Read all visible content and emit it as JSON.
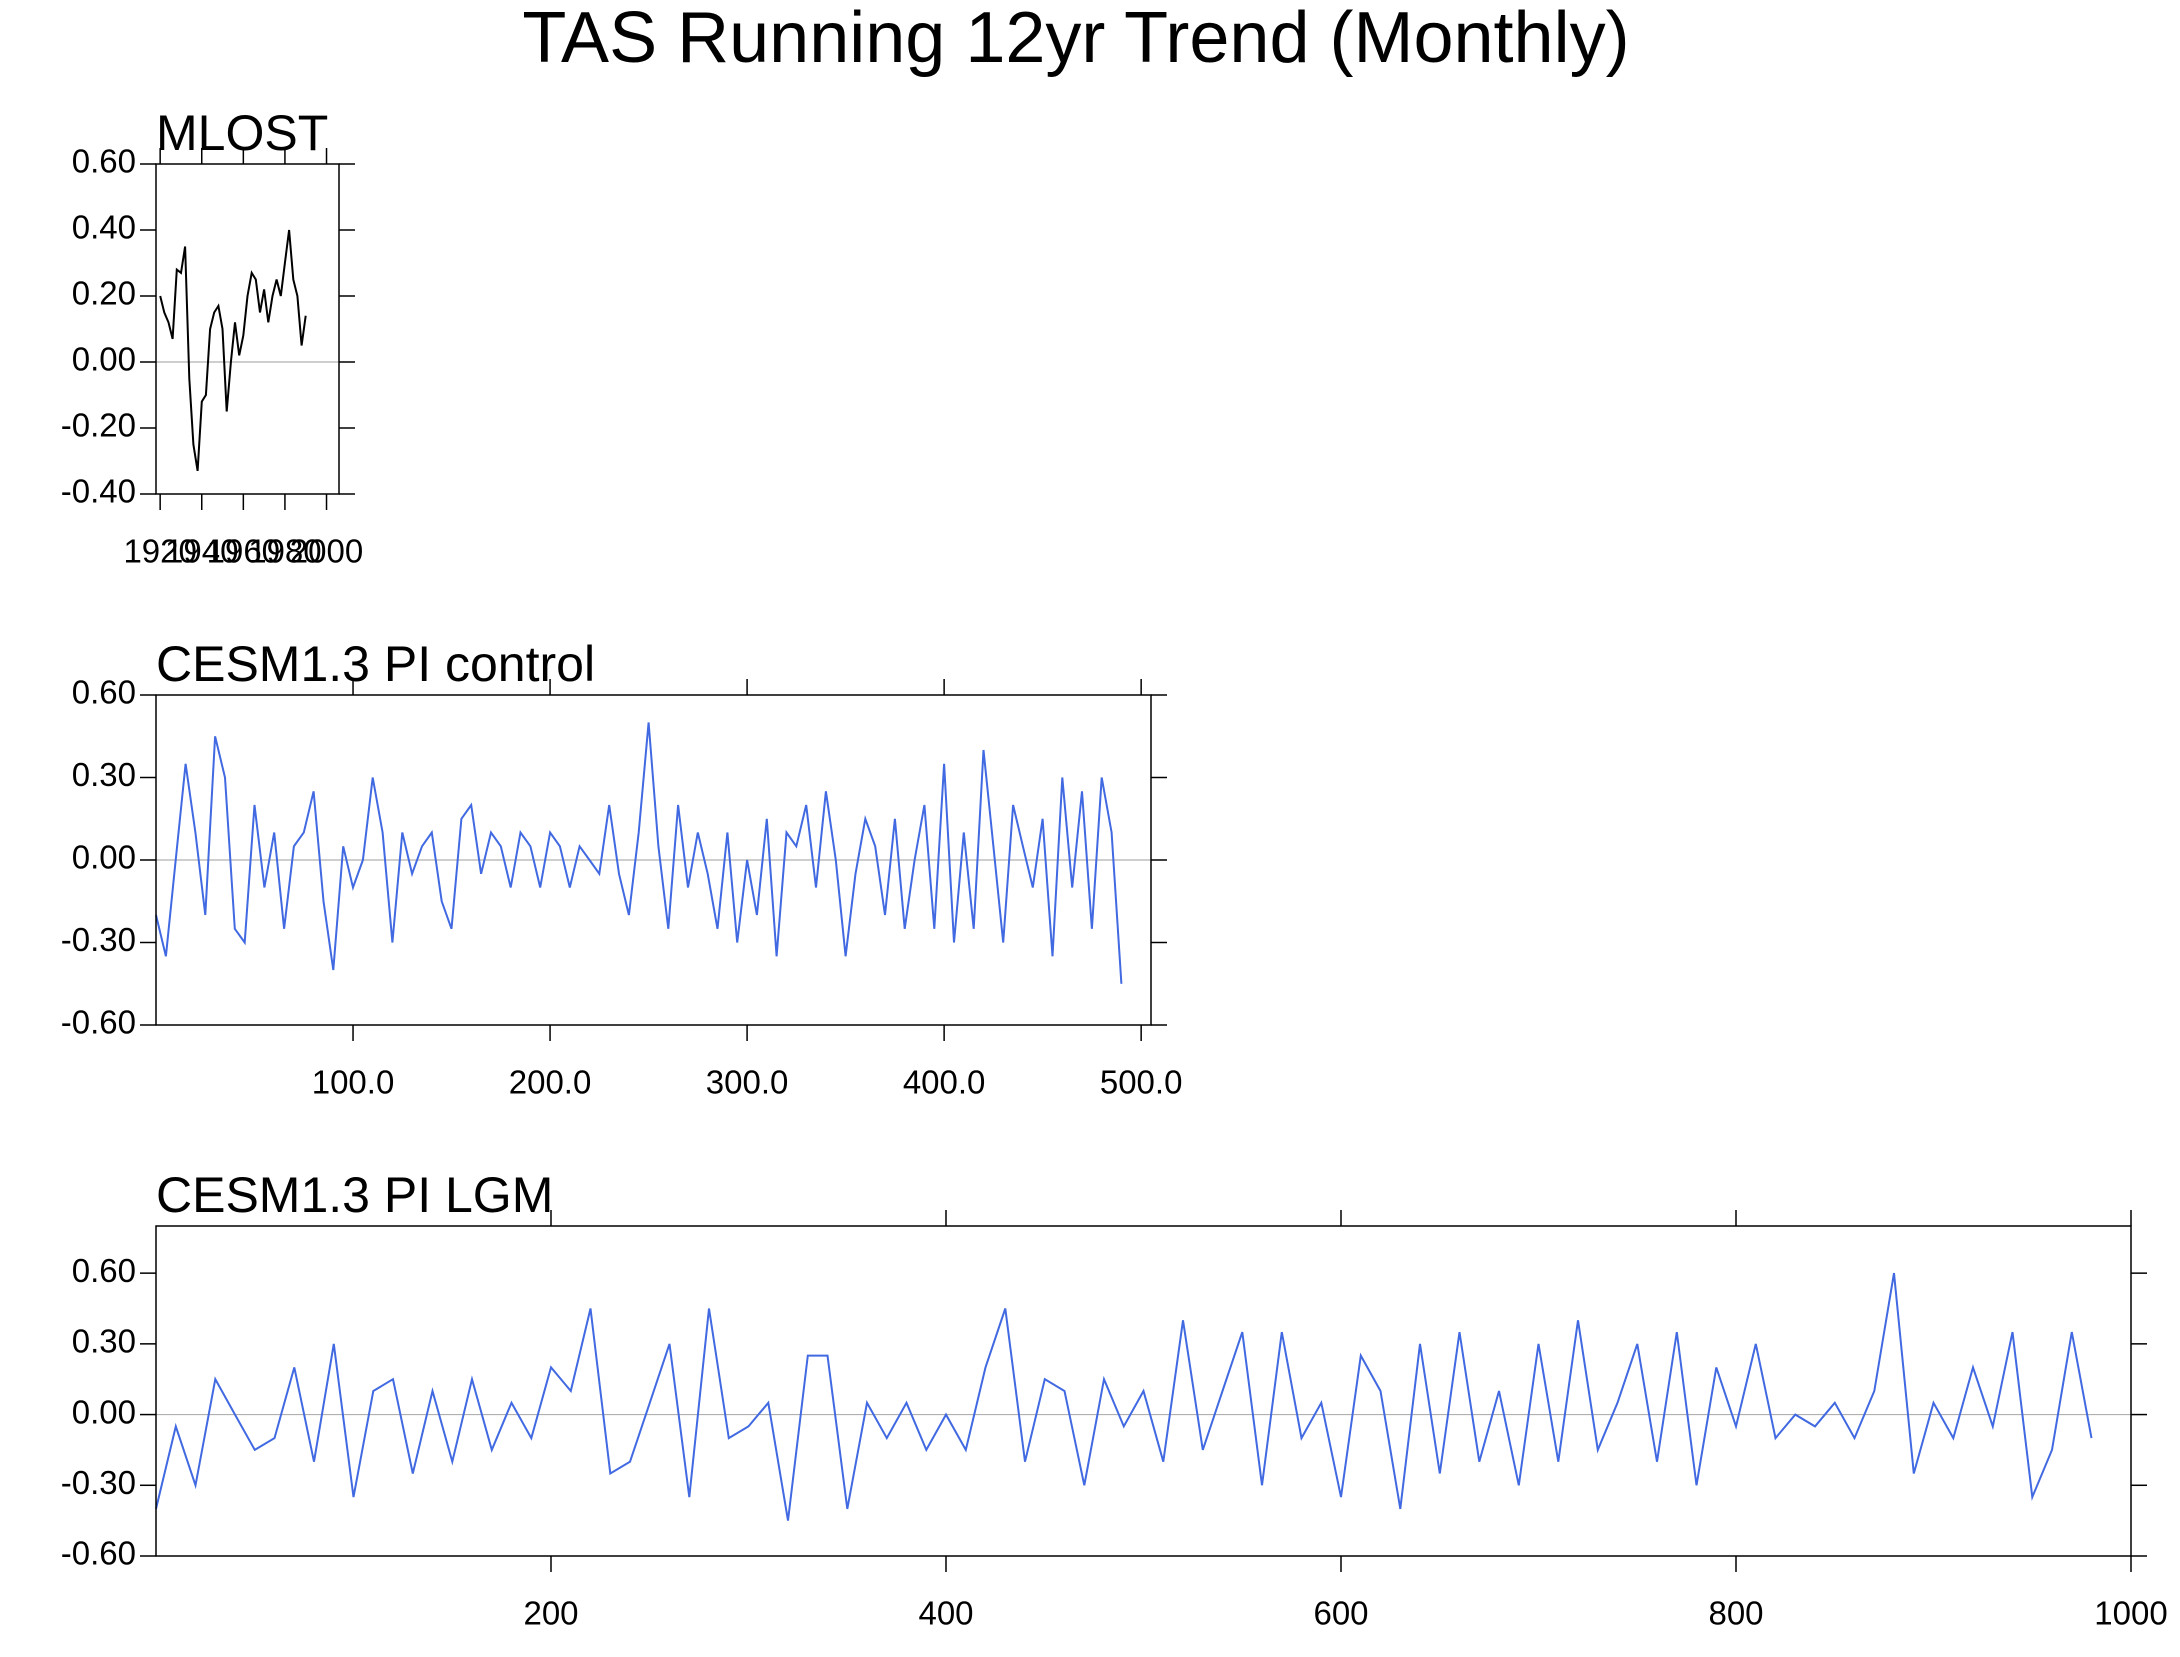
{
  "title": "TAS Running 12yr Trend (Monthly)",
  "chart_data": [
    {
      "type": "line",
      "title": "MLOST",
      "color": "#000000",
      "x": [
        1920,
        1922,
        1924,
        1926,
        1928,
        1930,
        1932,
        1934,
        1936,
        1938,
        1940,
        1942,
        1944,
        1946,
        1948,
        1950,
        1952,
        1954,
        1956,
        1958,
        1960,
        1962,
        1964,
        1966,
        1968,
        1970,
        1972,
        1974,
        1976,
        1978,
        1980,
        1982,
        1984,
        1986,
        1988,
        1990
      ],
      "values": [
        0.2,
        0.15,
        0.12,
        0.07,
        0.28,
        0.27,
        0.35,
        -0.05,
        -0.25,
        -0.33,
        -0.12,
        -0.1,
        0.1,
        0.15,
        0.17,
        0.1,
        -0.15,
        0.0,
        0.12,
        0.02,
        0.08,
        0.2,
        0.27,
        0.25,
        0.15,
        0.22,
        0.12,
        0.2,
        0.25,
        0.2,
        0.3,
        0.4,
        0.25,
        0.2,
        0.05,
        0.14
      ],
      "xlim": [
        1918,
        2006
      ],
      "xticks": [
        1920,
        1940,
        1960,
        1980,
        2000
      ],
      "ylim": [
        -0.4,
        0.6
      ],
      "yticks": [
        {
          "value": 0.6,
          "label": "0.60"
        },
        {
          "value": 0.4,
          "label": "0.40"
        },
        {
          "value": 0.2,
          "label": "0.20"
        },
        {
          "value": 0,
          "label": "0.00"
        },
        {
          "value": -0.2,
          "label": "-0.20"
        },
        {
          "value": -0.4,
          "label": "-0.40"
        }
      ]
    },
    {
      "type": "line",
      "title": "CESM1.3 PI control",
      "color": "#4169e1",
      "x": [
        0,
        5,
        10,
        15,
        20,
        25,
        30,
        35,
        40,
        45,
        50,
        55,
        60,
        65,
        70,
        75,
        80,
        85,
        90,
        95,
        100,
        105,
        110,
        115,
        120,
        125,
        130,
        135,
        140,
        145,
        150,
        155,
        160,
        165,
        170,
        175,
        180,
        185,
        190,
        195,
        200,
        205,
        210,
        215,
        220,
        225,
        230,
        235,
        240,
        245,
        250,
        255,
        260,
        265,
        270,
        275,
        280,
        285,
        290,
        295,
        300,
        305,
        310,
        315,
        320,
        325,
        330,
        335,
        340,
        345,
        350,
        355,
        360,
        365,
        370,
        375,
        380,
        385,
        390,
        395,
        400,
        405,
        410,
        415,
        420,
        425,
        430,
        435,
        440,
        445,
        450,
        455,
        460,
        465,
        470,
        475,
        480,
        485,
        490
      ],
      "values": [
        -0.2,
        -0.35,
        0.0,
        0.35,
        0.1,
        -0.2,
        0.45,
        0.3,
        -0.25,
        -0.3,
        0.2,
        -0.1,
        0.1,
        -0.25,
        0.05,
        0.1,
        0.25,
        -0.15,
        -0.4,
        0.05,
        -0.1,
        0.0,
        0.3,
        0.1,
        -0.3,
        0.1,
        -0.05,
        0.05,
        0.1,
        -0.15,
        -0.25,
        0.15,
        0.2,
        -0.05,
        0.1,
        0.05,
        -0.1,
        0.1,
        0.05,
        -0.1,
        0.1,
        0.05,
        -0.1,
        0.05,
        0.0,
        -0.05,
        0.2,
        -0.05,
        -0.2,
        0.1,
        0.5,
        0.05,
        -0.25,
        0.2,
        -0.1,
        0.1,
        -0.05,
        -0.25,
        0.1,
        -0.3,
        0.0,
        -0.2,
        0.15,
        -0.35,
        0.1,
        0.05,
        0.2,
        -0.1,
        0.25,
        0.0,
        -0.35,
        -0.05,
        0.15,
        0.05,
        -0.2,
        0.15,
        -0.25,
        0.0,
        0.2,
        -0.25,
        0.35,
        -0.3,
        0.1,
        -0.25,
        0.4,
        0.05,
        -0.3,
        0.2,
        0.05,
        -0.1,
        0.15,
        -0.35,
        0.3,
        -0.1,
        0.25,
        -0.25,
        0.3,
        0.1,
        -0.45
      ],
      "xlim": [
        0,
        505
      ],
      "xticks": [
        {
          "value": 100,
          "label": "100.0"
        },
        {
          "value": 200,
          "label": "200.0"
        },
        {
          "value": 300,
          "label": "300.0"
        },
        {
          "value": 400,
          "label": "400.0"
        },
        {
          "value": 500,
          "label": "500.0"
        }
      ],
      "ylim": [
        -0.6,
        0.6
      ],
      "yticks": [
        {
          "value": 0.6,
          "label": "0.60"
        },
        {
          "value": 0.3,
          "label": "0.30"
        },
        {
          "value": 0,
          "label": "0.00"
        },
        {
          "value": -0.3,
          "label": "-0.30"
        },
        {
          "value": -0.6,
          "label": "-0.60"
        }
      ]
    },
    {
      "type": "line",
      "title": "CESM1.3 PI LGM",
      "color": "#4169e1",
      "x": [
        0,
        10,
        20,
        30,
        40,
        50,
        60,
        70,
        80,
        90,
        100,
        110,
        120,
        130,
        140,
        150,
        160,
        170,
        180,
        190,
        200,
        210,
        220,
        230,
        240,
        250,
        260,
        270,
        280,
        290,
        300,
        310,
        320,
        330,
        340,
        350,
        360,
        370,
        380,
        390,
        400,
        410,
        420,
        430,
        440,
        450,
        460,
        470,
        480,
        490,
        500,
        510,
        520,
        530,
        540,
        550,
        560,
        570,
        580,
        590,
        600,
        610,
        620,
        630,
        640,
        650,
        660,
        670,
        680,
        690,
        700,
        710,
        720,
        730,
        740,
        750,
        760,
        770,
        780,
        790,
        800,
        810,
        820,
        830,
        840,
        850,
        860,
        870,
        880,
        890,
        900,
        910,
        920,
        930,
        940,
        950,
        960,
        970,
        980
      ],
      "values": [
        -0.4,
        -0.05,
        -0.3,
        0.15,
        0.0,
        -0.15,
        -0.1,
        0.2,
        -0.2,
        0.3,
        -0.35,
        0.1,
        0.15,
        -0.25,
        0.1,
        -0.2,
        0.15,
        -0.15,
        0.05,
        -0.1,
        0.2,
        0.1,
        0.45,
        -0.25,
        -0.2,
        0.05,
        0.3,
        -0.35,
        0.45,
        -0.1,
        -0.05,
        0.05,
        -0.45,
        0.25,
        0.25,
        -0.4,
        0.05,
        -0.1,
        0.05,
        -0.15,
        0.0,
        -0.15,
        0.2,
        0.45,
        -0.2,
        0.15,
        0.1,
        -0.3,
        0.15,
        -0.05,
        0.1,
        -0.2,
        0.4,
        -0.15,
        0.1,
        0.35,
        -0.3,
        0.35,
        -0.1,
        0.05,
        -0.35,
        0.25,
        0.1,
        -0.4,
        0.3,
        -0.25,
        0.35,
        -0.2,
        0.1,
        -0.3,
        0.3,
        -0.2,
        0.4,
        -0.15,
        0.05,
        0.3,
        -0.2,
        0.35,
        -0.3,
        0.2,
        -0.05,
        0.3,
        -0.1,
        0.0,
        -0.05,
        0.05,
        -0.1,
        0.1,
        0.6,
        -0.25,
        0.05,
        -0.1,
        0.2,
        -0.05,
        0.35,
        -0.35,
        -0.15,
        0.35,
        -0.1
      ],
      "xlim": [
        0,
        1000
      ],
      "xticks": [
        200,
        400,
        600,
        800,
        1000
      ],
      "ylim": [
        -0.6,
        0.8
      ],
      "yticks": [
        {
          "value": 0.6,
          "label": "0.60"
        },
        {
          "value": 0.3,
          "label": "0.30"
        },
        {
          "value": 0,
          "label": "0.00"
        },
        {
          "value": -0.3,
          "label": "-0.30"
        },
        {
          "value": -0.6,
          "label": "-0.60"
        }
      ]
    }
  ]
}
